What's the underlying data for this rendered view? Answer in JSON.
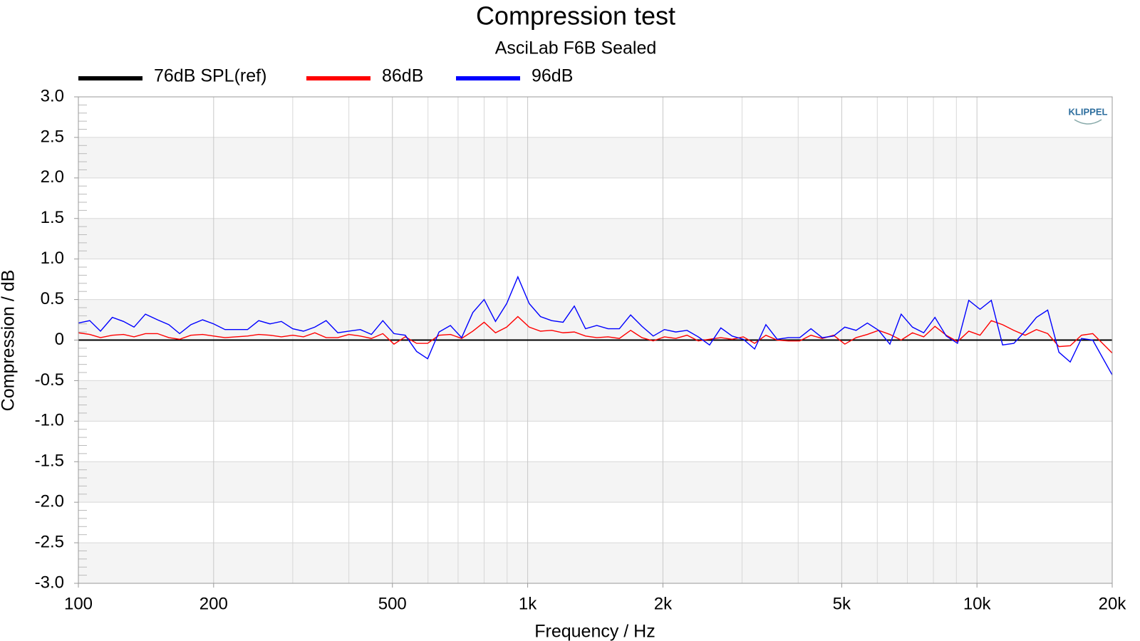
{
  "chart_data": {
    "type": "line",
    "title": "Compression test",
    "subtitle": "AsciLab F6B Sealed",
    "xlabel": "Frequency / Hz",
    "ylabel": "Compression / dB",
    "logo": "KLIPPEL",
    "xscale": "log",
    "grid": true,
    "legend": "top-left",
    "xlim": [
      100,
      20000
    ],
    "ylim": [
      -3,
      3
    ],
    "xticks": [
      100,
      200,
      500,
      {
        "value": 1000,
        "label": "1k"
      },
      {
        "value": 2000,
        "label": "2k"
      },
      {
        "value": 5000,
        "label": "5k"
      },
      {
        "value": 10000,
        "label": "10k"
      },
      {
        "value": 20000,
        "label": "20k"
      }
    ],
    "xminorticks": [
      300,
      400,
      600,
      700,
      800,
      900,
      3000,
      4000,
      6000,
      7000,
      8000,
      9000
    ],
    "yticks": [
      {
        "value": 3,
        "label": "3.0"
      },
      2.5,
      {
        "value": 2,
        "label": "2.0"
      },
      1.5,
      {
        "value": 1,
        "label": "1.0"
      },
      0.5,
      0,
      -0.5,
      {
        "value": -1,
        "label": "-1.0"
      },
      -1.5,
      {
        "value": -2,
        "label": "-2.0"
      },
      -2.5,
      {
        "value": -3,
        "label": "-3.0"
      }
    ],
    "x": [
      100,
      106,
      112,
      119,
      126,
      133,
      141,
      150,
      159,
      168,
      178,
      189,
      200,
      212,
      224,
      238,
      252,
      267,
      283,
      300,
      317,
      336,
      356,
      378,
      400,
      424,
      449,
      476,
      504,
      534,
      566,
      599,
      635,
      673,
      713,
      755,
      800,
      848,
      898,
      951,
      1008,
      1068,
      1131,
      1199,
      1270,
      1345,
      1425,
      1510,
      1600,
      1695,
      1796,
      1903,
      2016,
      2136,
      2263,
      2397,
      2540,
      2691,
      2851,
      3020,
      3200,
      3390,
      3592,
      3805,
      4032,
      4271,
      4525,
      4795,
      5080,
      5382,
      5702,
      6041,
      6400,
      6781,
      7184,
      7611,
      8063,
      8543,
      9051,
      9589,
      10159,
      10763,
      11404,
      12082,
      12800,
      13561,
      14368,
      15222,
      16127,
      17086,
      18102,
      20000
    ],
    "series": [
      {
        "name": "76dB SPL(ref)",
        "color": "#000000",
        "values": [
          0,
          0,
          0,
          0,
          0,
          0,
          0,
          0,
          0,
          0,
          0,
          0,
          0,
          0,
          0,
          0,
          0,
          0,
          0,
          0,
          0,
          0,
          0,
          0,
          0,
          0,
          0,
          0,
          0,
          0,
          0,
          0,
          0,
          0,
          0,
          0,
          0,
          0,
          0,
          0,
          0,
          0,
          0,
          0,
          0,
          0,
          0,
          0,
          0,
          0,
          0,
          0,
          0,
          0,
          0,
          0,
          0,
          0,
          0,
          0,
          0,
          0,
          0,
          0,
          0,
          0,
          0,
          0,
          0,
          0,
          0,
          0,
          0,
          0,
          0,
          0,
          0,
          0,
          0,
          0,
          0,
          0,
          0,
          0,
          0,
          0,
          0,
          0,
          0,
          0,
          0,
          0
        ]
      },
      {
        "name": "86dB",
        "color": "#ff0000",
        "values": [
          0.09,
          0.07,
          0.03,
          0.06,
          0.07,
          0.04,
          0.08,
          0.08,
          0.03,
          0.01,
          0.06,
          0.07,
          0.05,
          0.03,
          0.04,
          0.05,
          0.07,
          0.06,
          0.04,
          0.06,
          0.04,
          0.09,
          0.03,
          0.03,
          0.07,
          0.05,
          0.02,
          0.08,
          -0.05,
          0.04,
          -0.04,
          -0.04,
          0.06,
          0.07,
          0.02,
          0.11,
          0.22,
          0.09,
          0.16,
          0.29,
          0.16,
          0.11,
          0.12,
          0.09,
          0.1,
          0.05,
          0.03,
          0.04,
          0.02,
          0.12,
          0.03,
          -0.01,
          0.04,
          0.02,
          0.06,
          -0.01,
          0.01,
          0.03,
          0.01,
          0.04,
          -0.04,
          0.06,
          0.0,
          -0.01,
          -0.01,
          0.06,
          0.02,
          0.06,
          -0.05,
          0.03,
          0.07,
          0.12,
          0.07,
          0.0,
          0.09,
          0.04,
          0.17,
          0.06,
          -0.02,
          0.11,
          0.06,
          0.24,
          0.19,
          0.12,
          0.06,
          0.13,
          0.08,
          -0.08,
          -0.07,
          0.06,
          0.08,
          -0.16
        ]
      },
      {
        "name": "96dB",
        "color": "#0000ff",
        "values": [
          0.21,
          0.24,
          0.11,
          0.28,
          0.23,
          0.16,
          0.32,
          0.25,
          0.19,
          0.08,
          0.19,
          0.25,
          0.2,
          0.13,
          0.13,
          0.13,
          0.24,
          0.2,
          0.23,
          0.14,
          0.11,
          0.16,
          0.24,
          0.09,
          0.11,
          0.13,
          0.07,
          0.24,
          0.08,
          0.06,
          -0.14,
          -0.23,
          0.1,
          0.18,
          0.03,
          0.34,
          0.5,
          0.23,
          0.45,
          0.78,
          0.45,
          0.29,
          0.24,
          0.22,
          0.42,
          0.14,
          0.18,
          0.14,
          0.14,
          0.31,
          0.17,
          0.05,
          0.13,
          0.1,
          0.12,
          0.04,
          -0.06,
          0.15,
          0.05,
          0.01,
          -0.11,
          0.19,
          0.01,
          0.03,
          0.03,
          0.14,
          0.03,
          0.05,
          0.16,
          0.12,
          0.21,
          0.12,
          -0.05,
          0.32,
          0.16,
          0.09,
          0.28,
          0.05,
          -0.04,
          0.49,
          0.38,
          0.49,
          -0.06,
          -0.04,
          0.11,
          0.28,
          0.37,
          -0.15,
          -0.27,
          0.02,
          0.0,
          -0.43
        ]
      }
    ]
  }
}
